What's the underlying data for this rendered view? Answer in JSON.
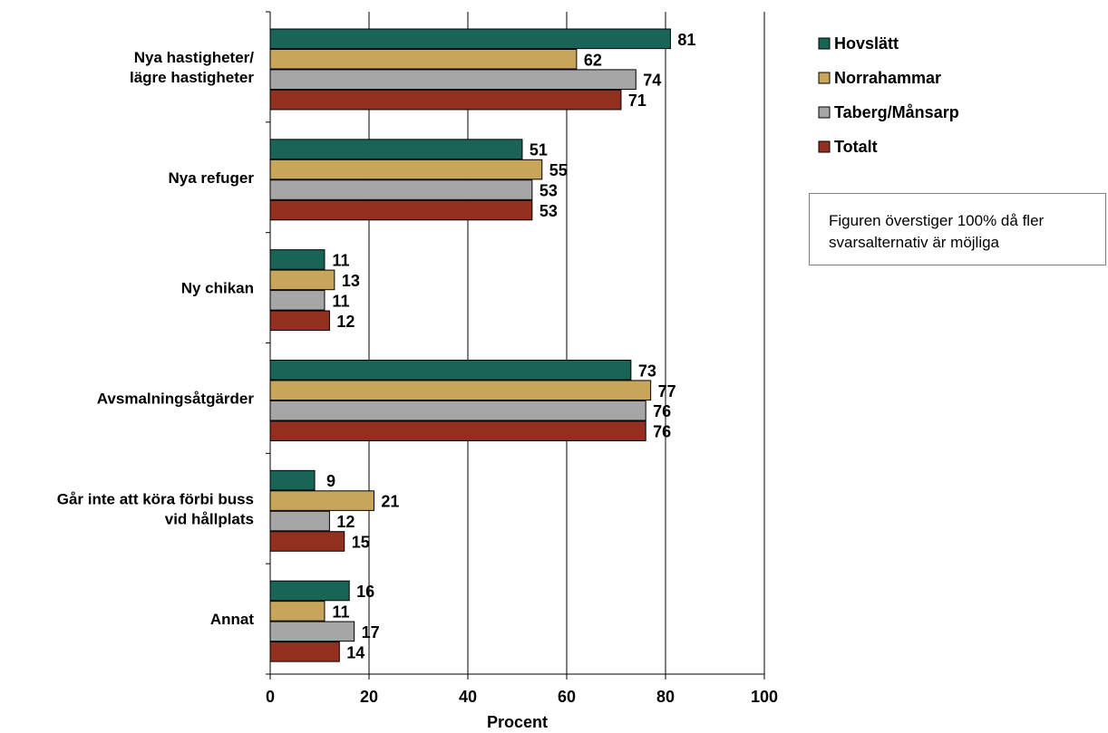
{
  "chart_data": {
    "type": "bar",
    "orientation": "horizontal",
    "categories": [
      [
        "Nya hastigheter/",
        "lägre hastigheter"
      ],
      [
        "Nya refuger"
      ],
      [
        "Ny chikan"
      ],
      [
        "Avsmalningsåtgärder"
      ],
      [
        "Går inte att köra förbi buss",
        "vid hållplats"
      ],
      [
        "Annat"
      ]
    ],
    "series": [
      {
        "name": "Hovslätt",
        "color": "#1a6457",
        "values": [
          81,
          51,
          11,
          73,
          9,
          16
        ]
      },
      {
        "name": "Norrahammar",
        "color": "#c8a55a",
        "values": [
          62,
          55,
          13,
          77,
          21,
          11
        ]
      },
      {
        "name": "Taberg/Månsarp",
        "color": "#a6a6a6",
        "values": [
          74,
          53,
          11,
          76,
          12,
          17
        ]
      },
      {
        "name": "Totalt",
        "color": "#922f1e",
        "values": [
          71,
          53,
          12,
          76,
          15,
          14
        ]
      }
    ],
    "xlabel": "Procent",
    "ylabel": "",
    "xlim": [
      0,
      100
    ],
    "xticks": [
      0,
      20,
      40,
      60,
      80,
      100
    ],
    "grid": true,
    "legend": "right",
    "data_labels": true
  },
  "note": "Figuren överstiger 100% då fler svarsalternativ är möjliga"
}
